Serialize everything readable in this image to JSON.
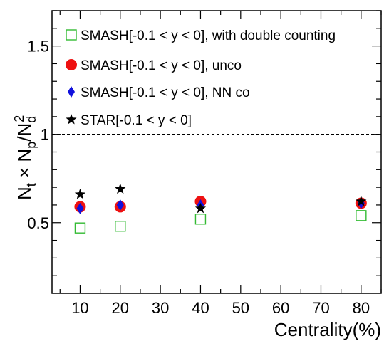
{
  "chart_data": {
    "type": "scatter",
    "xlabel": "Centrality(%)",
    "ylabel": {
      "base": "N",
      "sub1": "t",
      "mid": " × N",
      "sub2": "p",
      "slash": "/N",
      "sub3": "d",
      "sup3": "2"
    },
    "xlim": [
      3,
      85
    ],
    "ylim": [
      0.1,
      1.7
    ],
    "x_ticks": [
      10,
      20,
      30,
      40,
      50,
      60,
      70,
      80
    ],
    "y_ticks": [
      0.5,
      1,
      1.5
    ],
    "x_tick_labels": [
      "10",
      "20",
      "30",
      "40",
      "50",
      "60",
      "70",
      "80"
    ],
    "y_tick_labels": [
      "0.5",
      "1",
      "1.5"
    ],
    "reference_line": {
      "y": 1,
      "style": "dashed"
    },
    "legend_placement": "top-left",
    "series": [
      {
        "name": "SMASH[-0.1 < y < 0], with double counting",
        "marker": "open-square",
        "color": "#33bb33",
        "points": [
          {
            "x": 10,
            "y": 0.47
          },
          {
            "x": 20,
            "y": 0.48
          },
          {
            "x": 40,
            "y": 0.52
          },
          {
            "x": 80,
            "y": 0.54
          }
        ]
      },
      {
        "name": "SMASH[-0.1 < y < 0], unco",
        "marker": "filled-circle",
        "color": "#ee1111",
        "points": [
          {
            "x": 10,
            "y": 0.59
          },
          {
            "x": 20,
            "y": 0.59
          },
          {
            "x": 40,
            "y": 0.62
          },
          {
            "x": 80,
            "y": 0.61
          }
        ]
      },
      {
        "name": "SMASH[-0.1 < y < 0], NN co",
        "marker": "filled-diamond",
        "color": "#1111dd",
        "points": [
          {
            "x": 10,
            "y": 0.58
          },
          {
            "x": 20,
            "y": 0.6
          },
          {
            "x": 40,
            "y": 0.6
          },
          {
            "x": 80,
            "y": 0.61
          }
        ]
      },
      {
        "name": "STAR[-0.1 < y < 0]",
        "marker": "filled-star",
        "color": "#000000",
        "points": [
          {
            "x": 10,
            "y": 0.66
          },
          {
            "x": 20,
            "y": 0.69
          },
          {
            "x": 40,
            "y": 0.58
          },
          {
            "x": 80,
            "y": 0.62
          }
        ]
      }
    ]
  }
}
